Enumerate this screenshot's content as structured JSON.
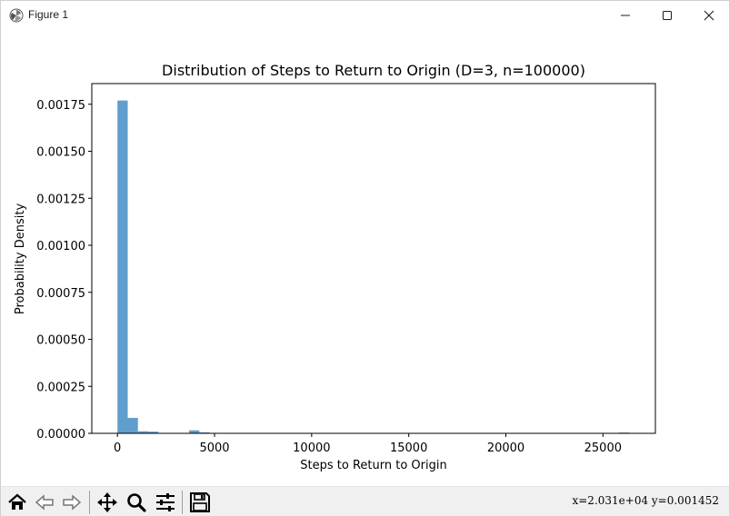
{
  "window": {
    "title": "Figure 1"
  },
  "toolbar": {
    "buttons": [
      "home-icon",
      "back-arrow-icon",
      "forward-arrow-icon",
      "pan-icon",
      "zoom-icon",
      "configure-subplots-icon",
      "save-icon"
    ],
    "coords": "x=2.031e+04  y=0.001452"
  },
  "chart_data": {
    "type": "bar",
    "title": "Distribution of Steps to Return to Origin (D=3, n=100000)",
    "xlabel": "Steps to Return to Origin",
    "ylabel": "Probability Density",
    "xlim": [
      -1320,
      27700
    ],
    "ylim": [
      0,
      0.00186
    ],
    "xticks": [
      0,
      5000,
      10000,
      15000,
      20000,
      25000
    ],
    "xtick_labels": [
      "0",
      "5000",
      "10000",
      "15000",
      "20000",
      "25000"
    ],
    "yticks": [
      0,
      0.00025,
      0.0005,
      0.00075,
      0.001,
      0.00125,
      0.0015,
      0.00175
    ],
    "ytick_labels": [
      "0.00000",
      "0.00025",
      "0.00050",
      "0.00075",
      "0.00100",
      "0.00125",
      "0.00150",
      "0.00175"
    ],
    "bin_start": 2,
    "bin_width": 527,
    "values": [
      0.00177,
      8.2e-05,
      1.1e-05,
      9e-06,
      0.0,
      0.0,
      0.0,
      1.6e-05,
      5e-06,
      0.0,
      0.0,
      0.0,
      0.0,
      0.0,
      0.0,
      0.0,
      0.0,
      0.0,
      0.0,
      0.0,
      0.0,
      0.0,
      0.0,
      0.0,
      0.0,
      0.0,
      0.0,
      0.0,
      0.0,
      0.0,
      0.0,
      0.0,
      0.0,
      0.0,
      0.0,
      0.0,
      0.0,
      0.0,
      0.0,
      0.0,
      0.0,
      0.0,
      0.0,
      0.0,
      0.0,
      0.0,
      0.0,
      0.0,
      0.0,
      4e-06
    ],
    "bar_color": "#5f9ecd",
    "grid": false,
    "legend": "none"
  }
}
